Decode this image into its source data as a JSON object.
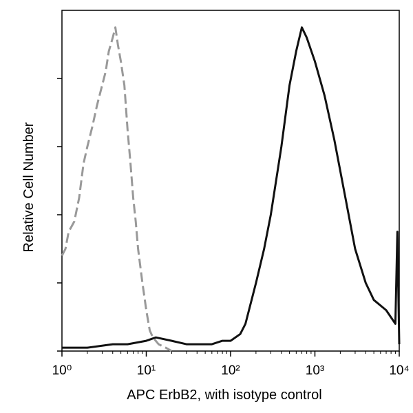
{
  "chart_data": {
    "type": "line",
    "xlabel": "APC ErbB2, with isotype control",
    "ylabel": "Relative Cell Number",
    "xscale": "log",
    "xlim": [
      1,
      10000
    ],
    "ylim": [
      0,
      100
    ],
    "xticks": [
      {
        "value": 1,
        "label": "10⁰"
      },
      {
        "value": 10,
        "label": "10¹"
      },
      {
        "value": 100,
        "label": "10²"
      },
      {
        "value": 1000,
        "label": "10³"
      },
      {
        "value": 10000,
        "label": "10⁴"
      }
    ],
    "xminorticks": [
      2,
      3,
      4,
      5,
      6,
      7,
      8,
      9,
      20,
      30,
      40,
      50,
      60,
      70,
      80,
      90,
      200,
      300,
      400,
      500,
      600,
      700,
      800,
      900,
      2000,
      3000,
      4000,
      5000,
      6000,
      7000,
      8000,
      9000
    ],
    "yticks": [
      0,
      20,
      40,
      60,
      80
    ],
    "series": [
      {
        "name": "isotype",
        "color": "#999999",
        "dashed": true,
        "x": [
          1.0,
          1.1,
          1.2,
          1.4,
          1.6,
          1.8,
          2.0,
          2.3,
          2.6,
          3.0,
          3.3,
          3.6,
          4.0,
          4.3,
          4.6,
          5.0,
          5.5,
          6.0,
          6.5,
          7.0,
          7.5,
          8.0,
          9.0,
          10,
          11,
          12,
          14,
          17,
          20
        ],
        "values": [
          28,
          30,
          35,
          38,
          45,
          55,
          60,
          66,
          72,
          78,
          82,
          88,
          92,
          95,
          90,
          85,
          78,
          65,
          55,
          45,
          38,
          30,
          20,
          12,
          6,
          4,
          2,
          1,
          0
        ]
      },
      {
        "name": "ErbB2",
        "color": "#111111",
        "dashed": false,
        "x": [
          1,
          2,
          4,
          6,
          10,
          13,
          20,
          30,
          45,
          60,
          80,
          100,
          130,
          150,
          200,
          250,
          300,
          400,
          500,
          600,
          700,
          800,
          1000,
          1300,
          1700,
          2300,
          3000,
          4000,
          5000,
          7000,
          9000,
          9500,
          10000
        ],
        "values": [
          1,
          1,
          2,
          2,
          3,
          4,
          3,
          2,
          2,
          2,
          3,
          3,
          5,
          8,
          20,
          30,
          40,
          60,
          78,
          88,
          95,
          92,
          85,
          75,
          62,
          45,
          30,
          20,
          15,
          12,
          8,
          35,
          2
        ]
      }
    ]
  }
}
